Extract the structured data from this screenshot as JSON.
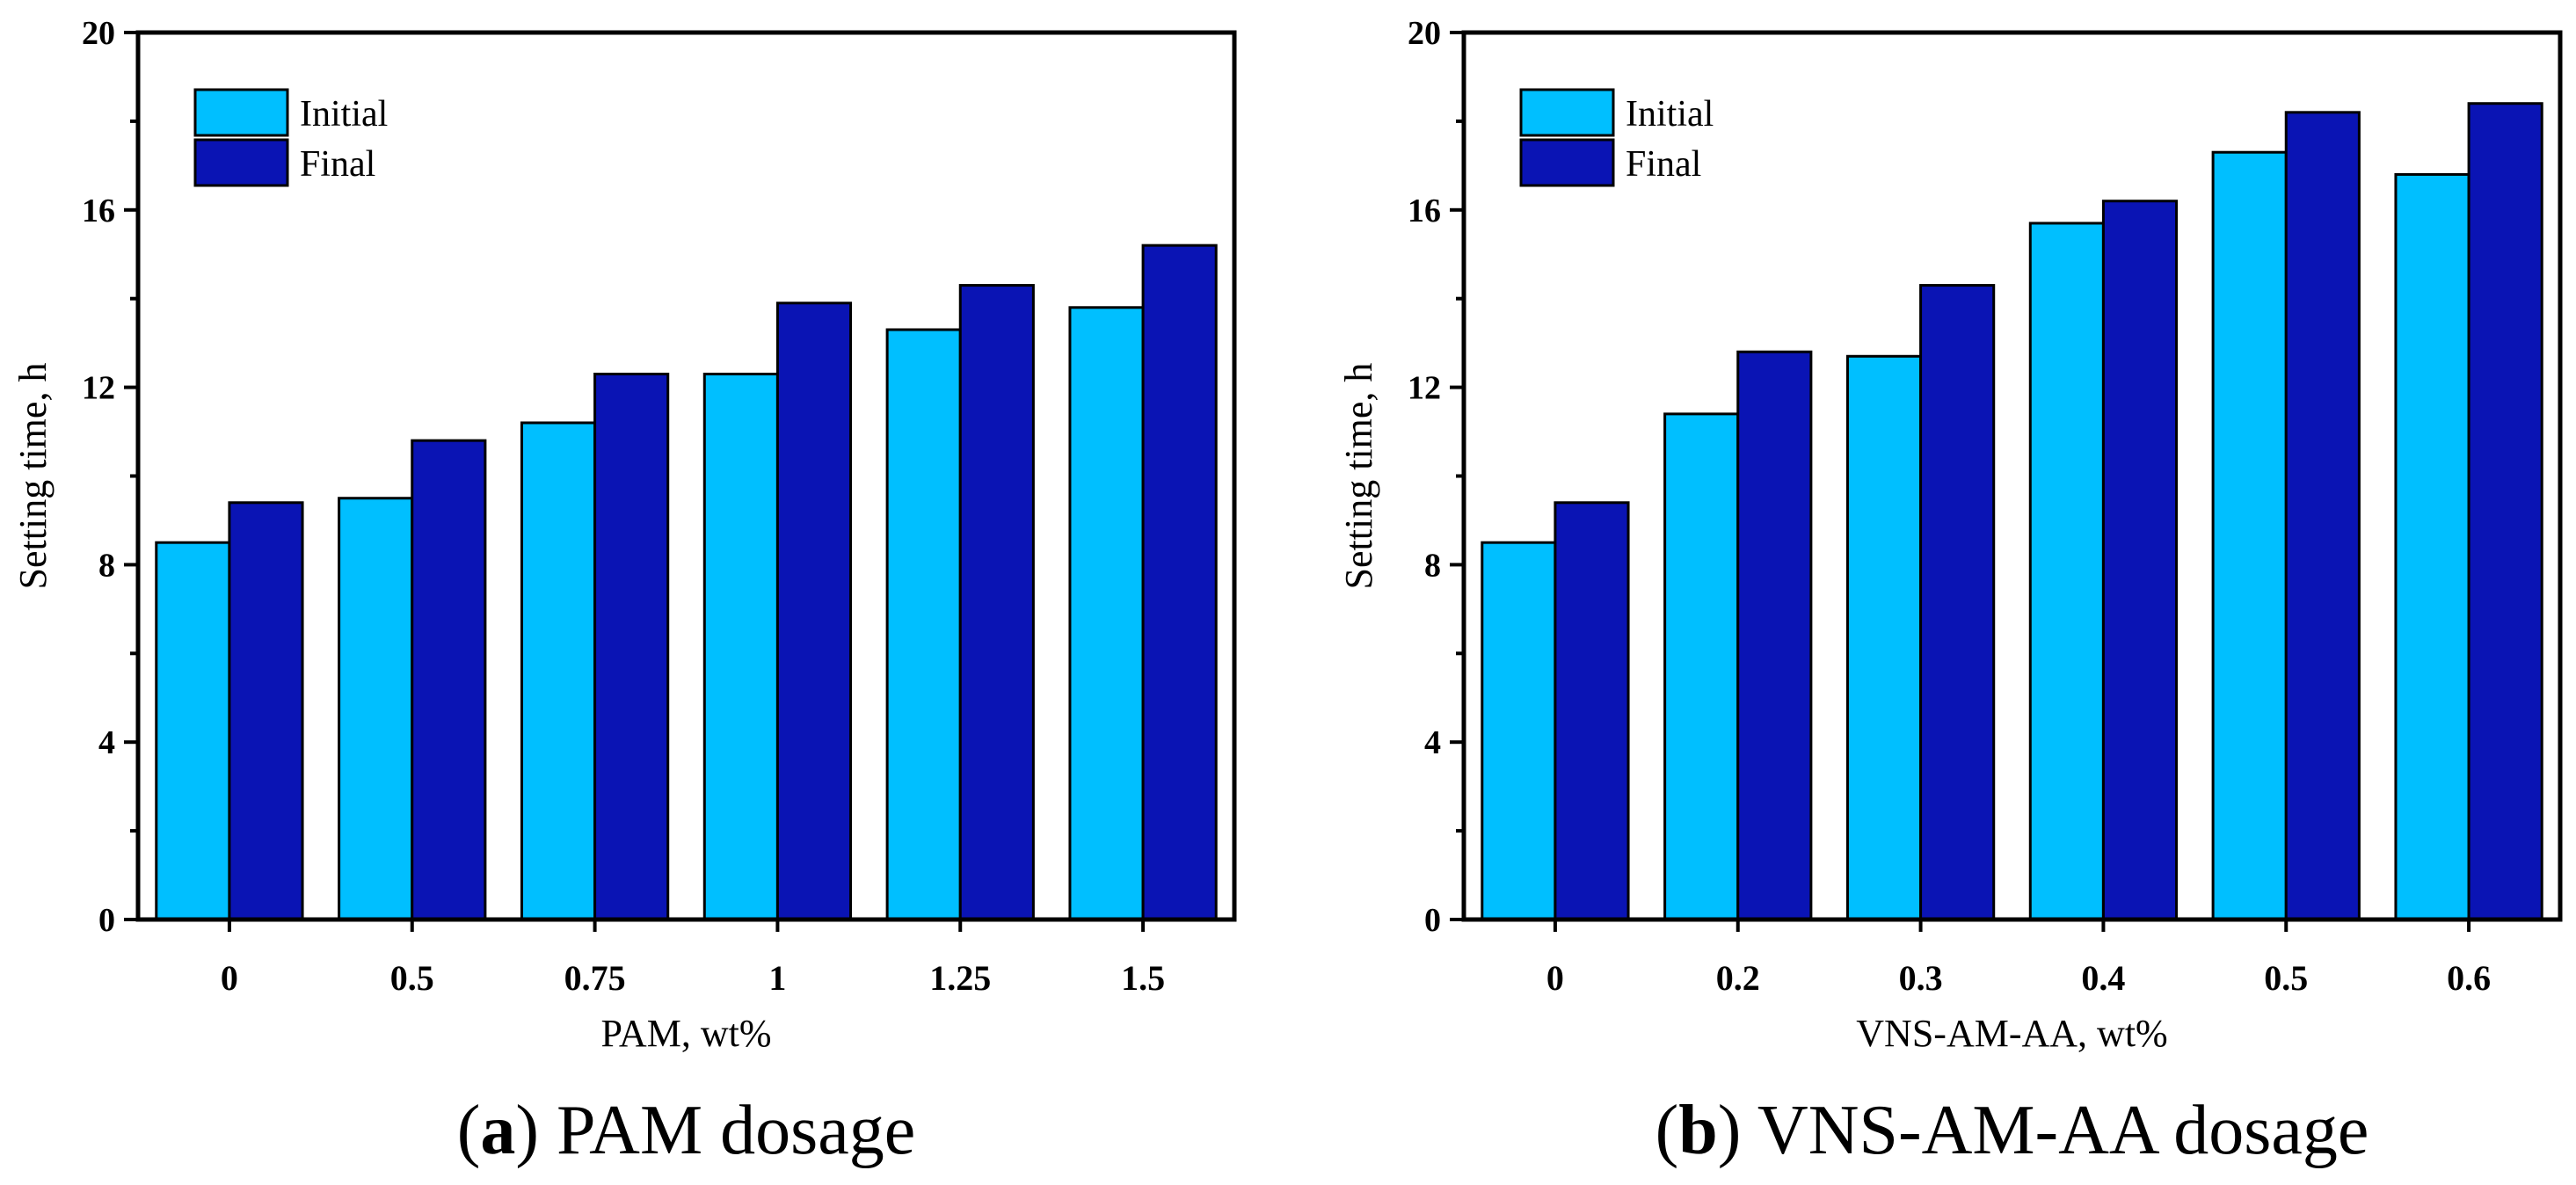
{
  "chart_data": [
    {
      "id": "a",
      "type": "bar",
      "panel_letter": "a",
      "caption": " PAM dosage",
      "xlabel": "PAM, wt%",
      "ylabel": "Setting time, h",
      "categories": [
        "0",
        "0.5",
        "0.75",
        "1",
        "1.25",
        "1.5"
      ],
      "series": [
        {
          "name": "Initial",
          "color": "#00BFFF",
          "values": [
            8.5,
            9.5,
            11.2,
            12.3,
            13.3,
            13.8
          ]
        },
        {
          "name": "Final",
          "color": "#0A14B4",
          "values": [
            9.4,
            10.8,
            12.3,
            13.9,
            14.3,
            15.2
          ]
        }
      ],
      "ylim": [
        0,
        20
      ],
      "yticks": [
        0,
        4,
        8,
        12,
        16,
        20
      ],
      "ytick_labels": [
        "0",
        "4",
        "8",
        "12",
        "16",
        "20"
      ],
      "legend_position": "top-left",
      "grid": false
    },
    {
      "id": "b",
      "type": "bar",
      "panel_letter": "b",
      "caption": " VNS-AM-AA dosage",
      "xlabel": "VNS-AM-AA, wt%",
      "ylabel": "Setting time, h",
      "categories": [
        "0",
        "0.2",
        "0.3",
        "0.4",
        "0.5",
        "0.6"
      ],
      "series": [
        {
          "name": "Initial",
          "color": "#00BFFF",
          "values": [
            8.5,
            11.4,
            12.7,
            15.7,
            17.3,
            16.8
          ]
        },
        {
          "name": "Final",
          "color": "#0A14B4",
          "values": [
            9.4,
            12.8,
            14.3,
            16.2,
            18.2,
            18.4
          ]
        }
      ],
      "ylim": [
        0,
        20
      ],
      "yticks": [
        0,
        4,
        8,
        12,
        16,
        20
      ],
      "ytick_labels": [
        "0",
        "4",
        "8",
        "12",
        "16",
        "20"
      ],
      "legend_position": "top-left",
      "grid": false
    }
  ]
}
